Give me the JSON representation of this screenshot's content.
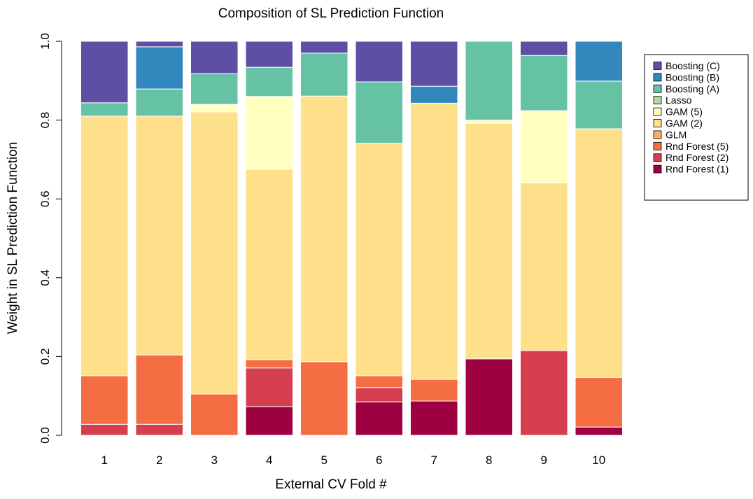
{
  "chart_data": {
    "type": "stacked_bar",
    "title": "Composition of SL Prediction Function",
    "x_label": "External CV Fold #",
    "y_label": "Weight in SL Prediction Function",
    "categories": [
      "1",
      "2",
      "3",
      "4",
      "5",
      "6",
      "7",
      "8",
      "9",
      "10"
    ],
    "ylim": [
      0,
      1
    ],
    "yticks": [
      {
        "value": 0,
        "label": "0.0"
      },
      {
        "value": 0.2,
        "label": "0.2"
      },
      {
        "value": 0.4,
        "label": "0.4"
      },
      {
        "value": 0.6,
        "label": "0.6"
      },
      {
        "value": 0.8,
        "label": "0.8"
      },
      {
        "value": 1,
        "label": "1.0"
      }
    ],
    "series": [
      {
        "name": "Rnd Forest (1)",
        "color": "#9e0142",
        "values": [
          0,
          0,
          0,
          0.073,
          0,
          0.085,
          0.087,
          0.194,
          0,
          0.021
        ]
      },
      {
        "name": "Rnd Forest (2)",
        "color": "#d53e4f",
        "values": [
          0.028,
          0.028,
          0,
          0.098,
          0,
          0.036,
          0,
          0,
          0.215,
          0
        ]
      },
      {
        "name": "Rnd Forest (5)",
        "color": "#f46d43",
        "values": [
          0.123,
          0.176,
          0.105,
          0.021,
          0.187,
          0.03,
          0.055,
          0,
          0,
          0.126
        ]
      },
      {
        "name": "GLM",
        "color": "#fdae61",
        "values": [
          0,
          0,
          0,
          0,
          0,
          0,
          0,
          0,
          0,
          0
        ]
      },
      {
        "name": "GAM (2)",
        "color": "#fee08b",
        "values": [
          0.659,
          0.606,
          0.716,
          0.483,
          0.674,
          0.59,
          0.701,
          0.598,
          0.426,
          0.631
        ]
      },
      {
        "name": "GAM (5)",
        "color": "#ffffbf",
        "values": [
          0,
          0,
          0.019,
          0.185,
          0,
          0,
          0,
          0.008,
          0.183,
          0
        ]
      },
      {
        "name": "Lasso",
        "color": "#abdda4",
        "values": [
          0,
          0,
          0,
          0,
          0,
          0,
          0,
          0,
          0,
          0
        ]
      },
      {
        "name": "Boosting (A)",
        "color": "#66c2a5",
        "values": [
          0.034,
          0.069,
          0.078,
          0.074,
          0.109,
          0.156,
          0,
          0.2,
          0.14,
          0.121
        ]
      },
      {
        "name": "Boosting (B)",
        "color": "#3288bd",
        "values": [
          0,
          0.107,
          0,
          0,
          0,
          0,
          0.043,
          0,
          0,
          0.101
        ]
      },
      {
        "name": "Boosting (C)",
        "color": "#5e4fa2",
        "values": [
          0.156,
          0.014,
          0.082,
          0.066,
          0.03,
          0.103,
          0.114,
          0,
          0.036,
          0
        ]
      }
    ]
  }
}
